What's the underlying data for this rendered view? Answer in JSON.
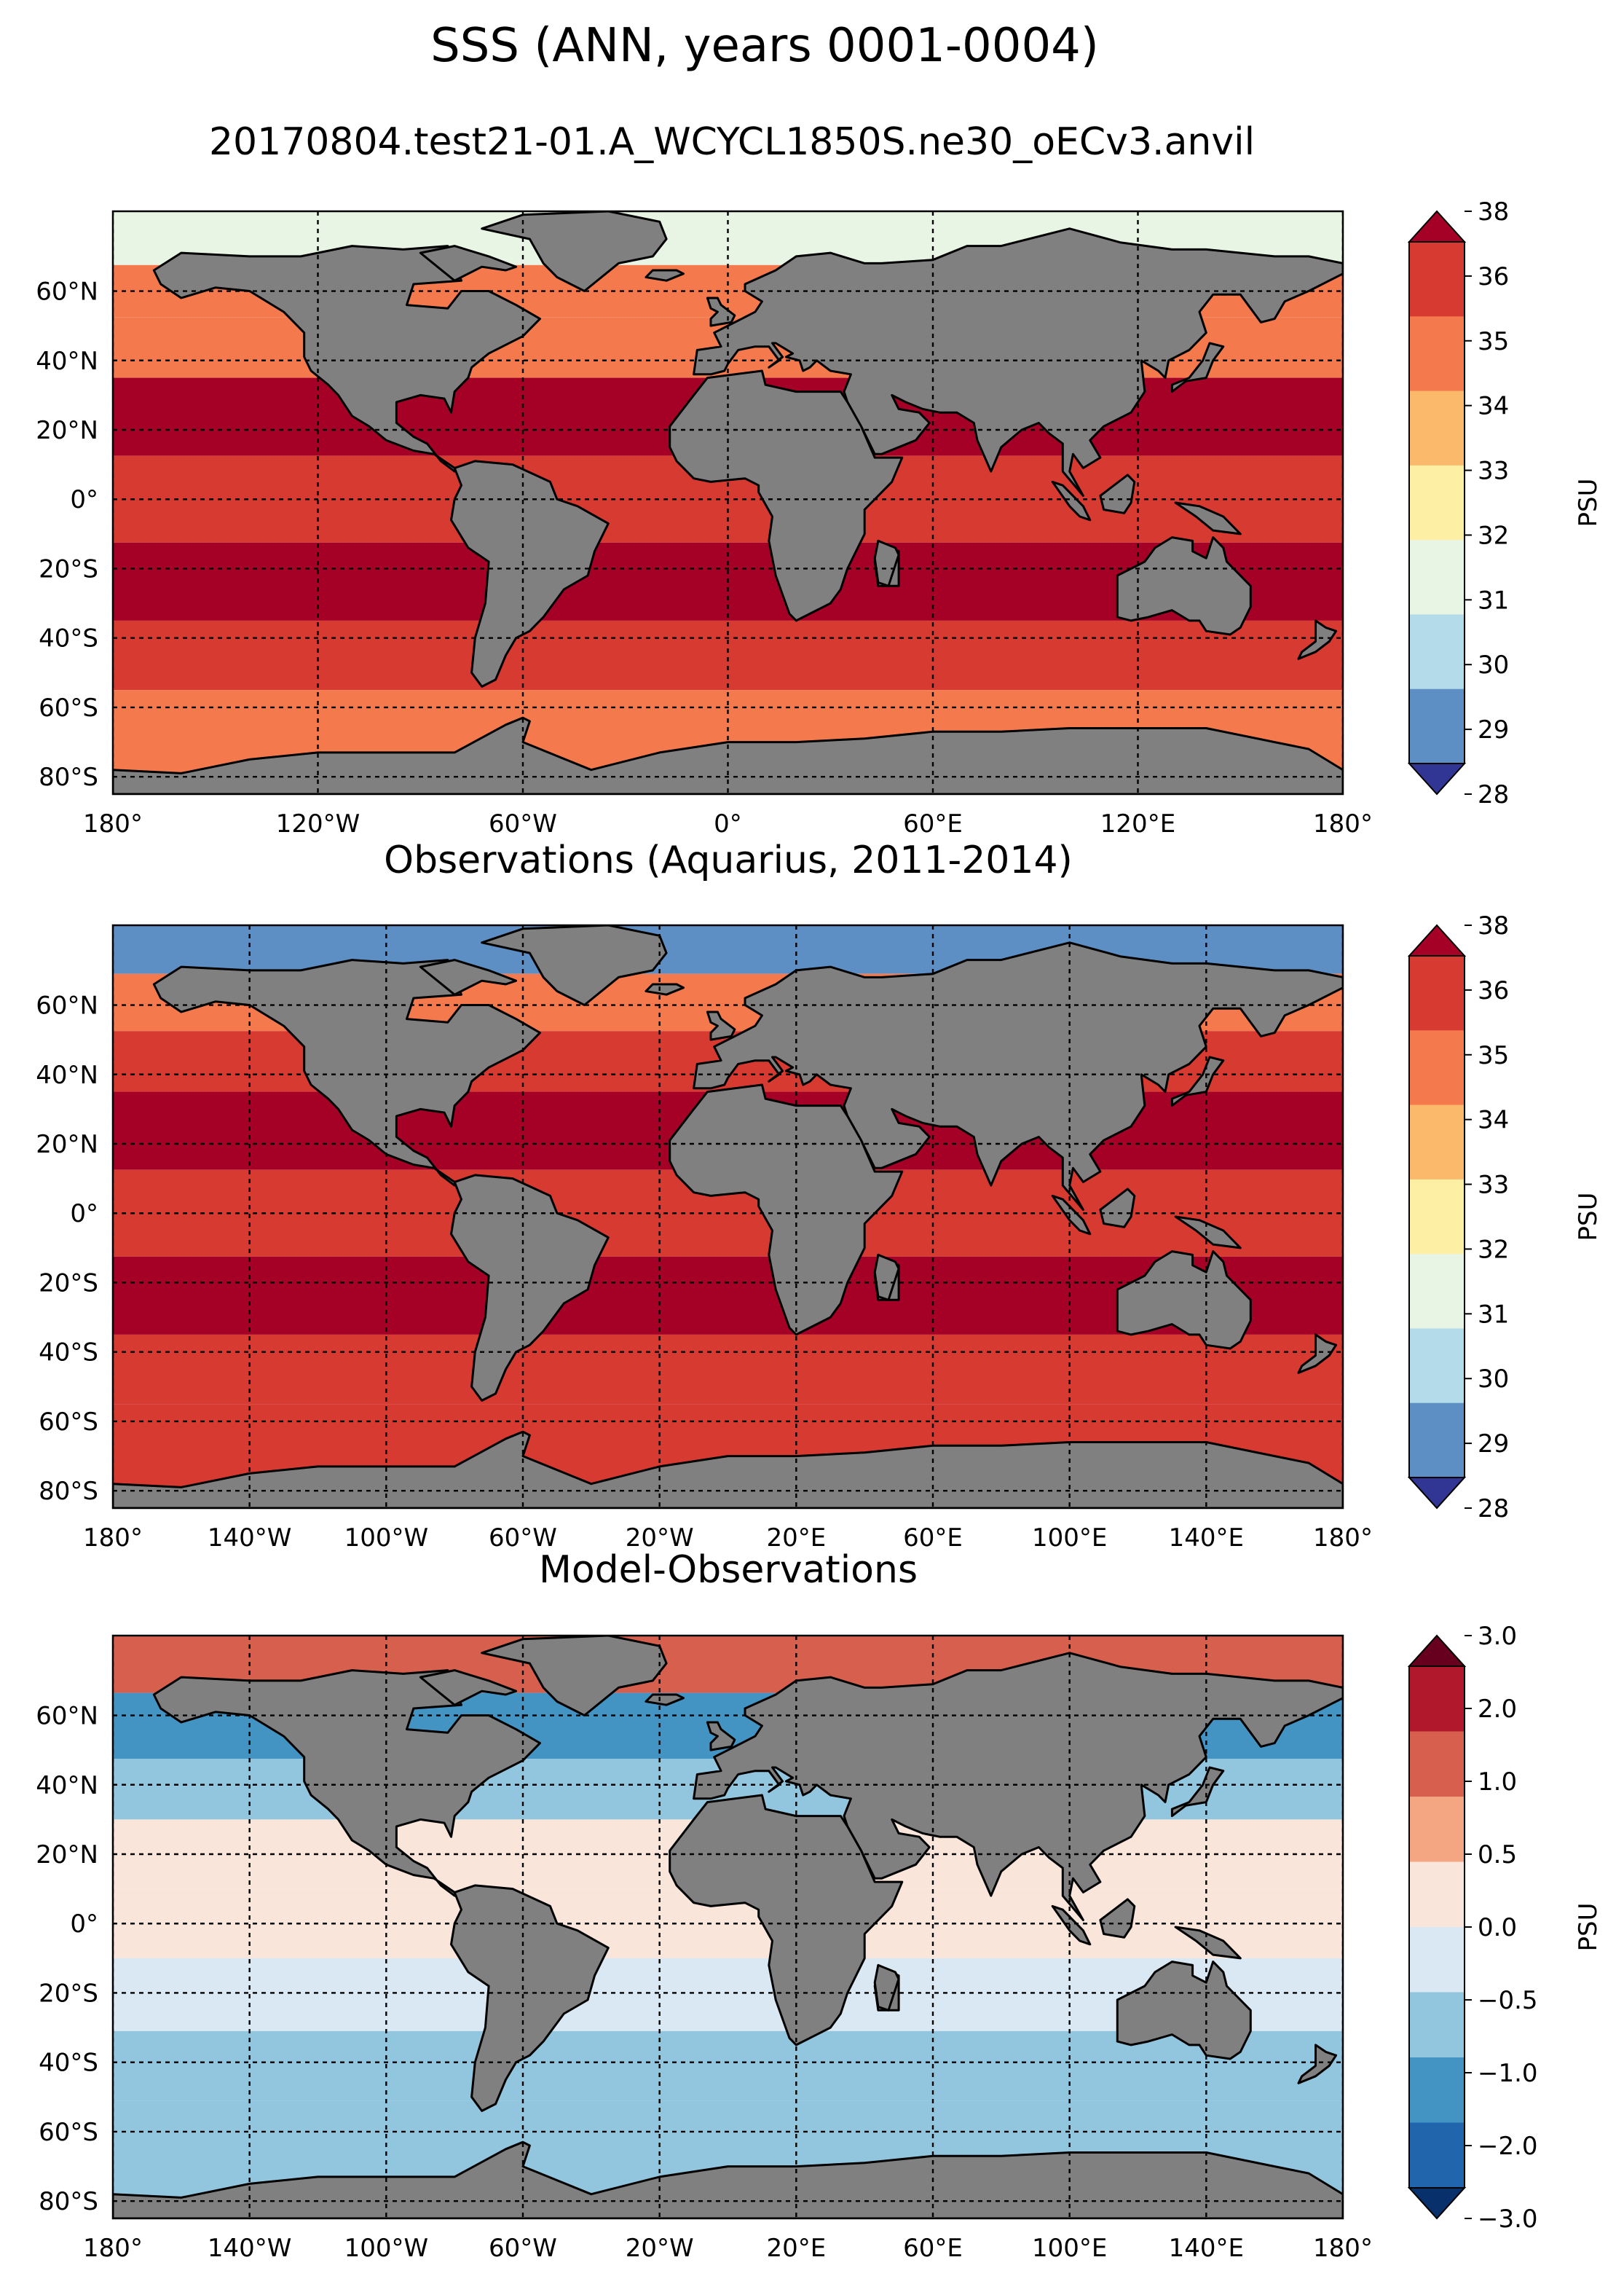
{
  "figure": {
    "title": "SSS (ANN, years 0001-0004)",
    "subtitle": "20170804.test21-01.A_WCYCL1850S.ne30_oECv3.anvil"
  },
  "colors": {
    "ocean_main": [
      "#313695",
      "#5d8fc5",
      "#b3dbea",
      "#e8f5e4",
      "#fdf0a4",
      "#fbb96c",
      "#f47a4e",
      "#d63a31",
      "#a50026"
    ],
    "ocean_diff": [
      "#08306b",
      "#2166ac",
      "#4393c3",
      "#92c5de",
      "#d9e8f3",
      "#f9e5da",
      "#f4a582",
      "#d6604d",
      "#b2182b",
      "#67001f"
    ],
    "land": "#808080"
  },
  "panels": [
    {
      "id": "model",
      "title": "",
      "lon_ticks": [
        "180°",
        "120°W",
        "60°W",
        "0°",
        "60°E",
        "120°E",
        "180°"
      ],
      "lat_ticks": [
        "60°N",
        "40°N",
        "20°N",
        "0°",
        "20°S",
        "40°S",
        "60°S",
        "80°S"
      ],
      "colorbar": {
        "label": "PSU",
        "ticks": [
          "28",
          "29",
          "30",
          "31",
          "32",
          "33",
          "34",
          "35",
          "36",
          "38"
        ]
      }
    },
    {
      "id": "obs",
      "title": "Observations (Aquarius, 2011-2014)",
      "lon_ticks": [
        "180°",
        "140°W",
        "100°W",
        "60°W",
        "20°W",
        "20°E",
        "60°E",
        "100°E",
        "140°E",
        "180°"
      ],
      "lat_ticks": [
        "60°N",
        "40°N",
        "20°N",
        "0°",
        "20°S",
        "40°S",
        "60°S",
        "80°S"
      ],
      "colorbar": {
        "label": "PSU",
        "ticks": [
          "28",
          "29",
          "30",
          "31",
          "32",
          "33",
          "34",
          "35",
          "36",
          "38"
        ]
      }
    },
    {
      "id": "diff",
      "title": "Model-Observations",
      "lon_ticks": [
        "180°",
        "140°W",
        "100°W",
        "60°W",
        "20°W",
        "20°E",
        "60°E",
        "100°E",
        "140°E",
        "180°"
      ],
      "lat_ticks": [
        "60°N",
        "40°N",
        "20°N",
        "0°",
        "20°S",
        "40°S",
        "60°S",
        "80°S"
      ],
      "colorbar": {
        "label": "PSU",
        "ticks": [
          "−3.0",
          "−2.0",
          "−1.0",
          "−0.5",
          "0.0",
          "0.5",
          "1.0",
          "2.0",
          "3.0"
        ]
      }
    }
  ],
  "chart_data": [
    {
      "type": "heatmap",
      "title": "",
      "variable": "SSS",
      "units": "PSU",
      "lon_range": [
        -180,
        180
      ],
      "lat_range": [
        -85,
        83
      ],
      "levels": [
        28,
        29,
        30,
        31,
        32,
        33,
        34,
        35,
        36,
        38
      ],
      "extend": "both",
      "grid": true,
      "zonal_bands": [
        {
          "lat": 75,
          "value": 30.5
        },
        {
          "lat": 60,
          "value": 33.5
        },
        {
          "lat": 45,
          "value": 33.5
        },
        {
          "lat": 25,
          "value": 35.5
        },
        {
          "lat": 0,
          "value": 34.5
        },
        {
          "lat": -25,
          "value": 35.5
        },
        {
          "lat": -45,
          "value": 34.2
        },
        {
          "lat": -65,
          "value": 33.5
        }
      ]
    },
    {
      "type": "heatmap",
      "title": "Observations (Aquarius, 2011-2014)",
      "variable": "SSS",
      "units": "PSU",
      "lon_range": [
        -180,
        180
      ],
      "lat_range": [
        -85,
        83
      ],
      "levels": [
        28,
        29,
        30,
        31,
        32,
        33,
        34,
        35,
        36,
        38
      ],
      "extend": "both",
      "grid": true,
      "zonal_bands": [
        {
          "lat": 78,
          "value": 28.5
        },
        {
          "lat": 60,
          "value": 33.5
        },
        {
          "lat": 45,
          "value": 34.5
        },
        {
          "lat": 25,
          "value": 36.2
        },
        {
          "lat": 0,
          "value": 34.5
        },
        {
          "lat": -25,
          "value": 35.8
        },
        {
          "lat": -45,
          "value": 34.5
        },
        {
          "lat": -65,
          "value": 34.2
        }
      ]
    },
    {
      "type": "heatmap",
      "title": "Model-Observations",
      "variable": "SSS bias",
      "units": "PSU",
      "lon_range": [
        -180,
        180
      ],
      "lat_range": [
        -85,
        83
      ],
      "levels": [
        -3.0,
        -2.0,
        -1.0,
        -0.5,
        0.0,
        0.5,
        1.0,
        2.0,
        3.0
      ],
      "extend": "both",
      "grid": true,
      "zonal_bands": [
        {
          "lat": 78,
          "value": 2.5
        },
        {
          "lat": 55,
          "value": -1.2
        },
        {
          "lat": 40,
          "value": -0.7
        },
        {
          "lat": 20,
          "value": 0.2
        },
        {
          "lat": 0,
          "value": 0.1
        },
        {
          "lat": -20,
          "value": -0.3
        },
        {
          "lat": -42,
          "value": -0.8
        },
        {
          "lat": -60,
          "value": -0.6
        }
      ]
    }
  ]
}
